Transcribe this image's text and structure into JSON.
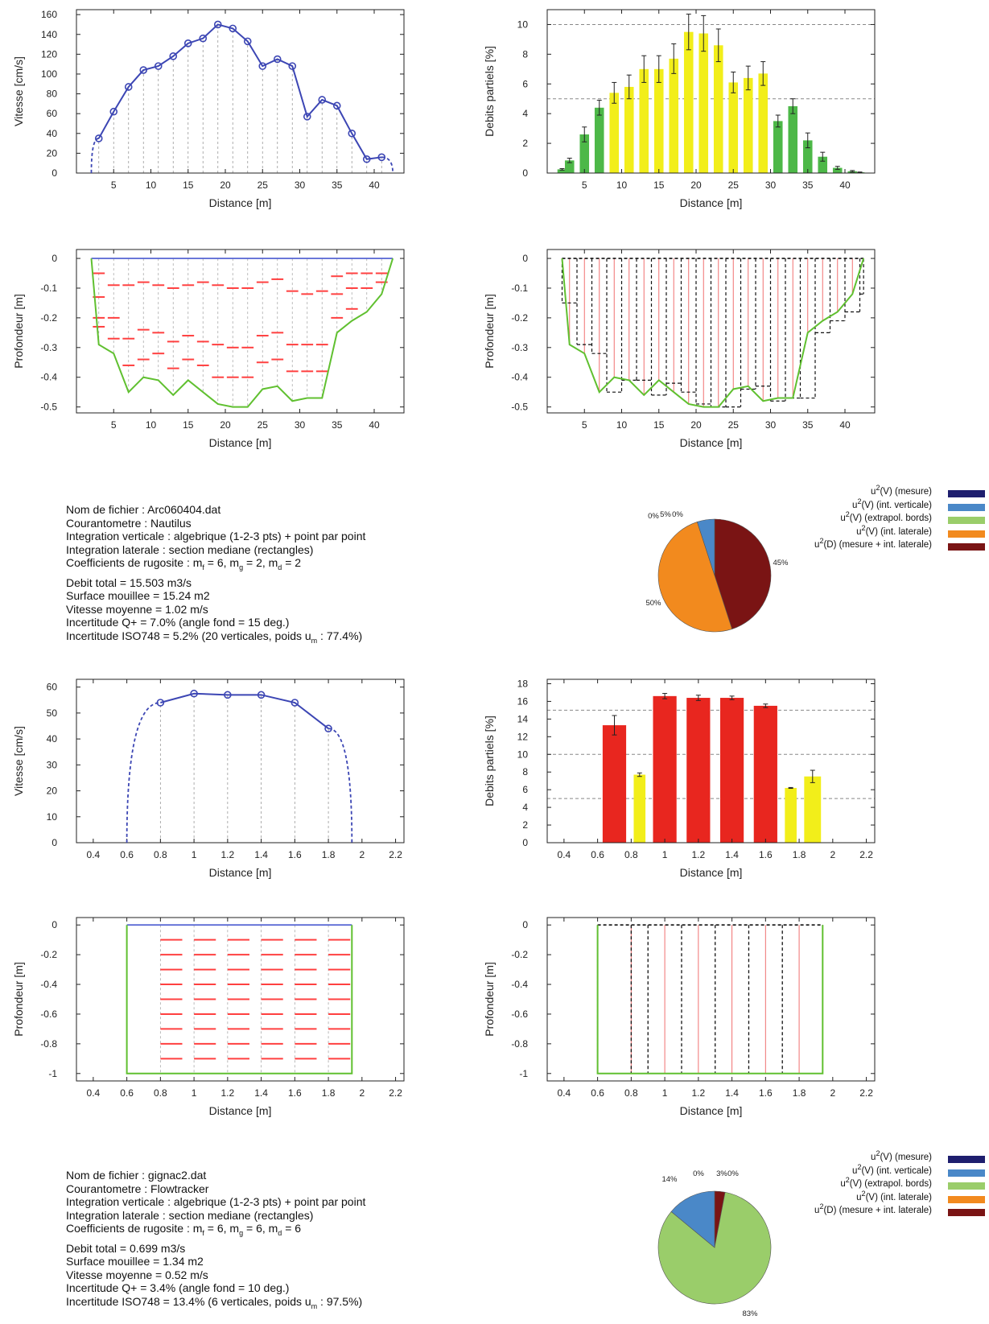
{
  "colors": {
    "velocity_line": "#3c46b4",
    "point_red": "#ff4040",
    "bed_green": "#60c030",
    "surface_blue": "#4a5ad0",
    "bar_green": "#4db848",
    "bar_yellow": "#f2ee1a",
    "bar_red": "#e8261f",
    "pie_dark_blue": "#1e1e6e",
    "pie_blue": "#4a88c8",
    "pie_light_green": "#9acd6a",
    "pie_orange": "#f28a1e",
    "pie_dark_red": "#7a1414"
  },
  "chart_data": [
    {
      "id": "m1_velocity",
      "type": "line",
      "xlabel": "Distance [m]",
      "ylabel": "Vitesse [cm/s]",
      "xlim": [
        0,
        44
      ],
      "ylim": [
        0,
        165
      ],
      "xticks": [
        5,
        10,
        15,
        20,
        25,
        30,
        35,
        40
      ],
      "yticks": [
        0,
        20,
        40,
        60,
        80,
        100,
        120,
        140,
        160
      ],
      "x": [
        3,
        5,
        7,
        9,
        11,
        13,
        15,
        17,
        19,
        21,
        23,
        25,
        27,
        29,
        31,
        33,
        35,
        37,
        39,
        41
      ],
      "y": [
        35,
        62,
        87,
        104,
        108,
        118,
        131,
        136,
        150,
        146,
        133,
        108,
        115,
        108,
        57,
        74,
        68,
        40,
        14,
        16
      ],
      "extrapolated_left": [
        2,
        0
      ],
      "extrapolated_right": [
        42.5,
        0
      ],
      "grid": "vertical dashed"
    },
    {
      "id": "m1_partial_flows",
      "type": "bar",
      "xlabel": "Distance [m]",
      "ylabel": "Debits partiels [%]",
      "xlim": [
        0,
        44
      ],
      "ylim": [
        0,
        11
      ],
      "xticks": [
        5,
        10,
        15,
        20,
        25,
        30,
        35,
        40
      ],
      "yticks": [
        0,
        2,
        4,
        6,
        8,
        10
      ],
      "reference_lines": [
        5,
        10
      ],
      "x": [
        2,
        3,
        5,
        7,
        9,
        11,
        13,
        15,
        17,
        19,
        21,
        23,
        25,
        27,
        29,
        31,
        33,
        35,
        37,
        39,
        41,
        42
      ],
      "values": [
        0.25,
        0.85,
        2.6,
        4.4,
        5.4,
        5.8,
        7.0,
        7.0,
        7.7,
        9.5,
        9.4,
        8.6,
        6.1,
        6.4,
        6.7,
        3.5,
        4.5,
        2.2,
        1.1,
        0.35,
        0.12,
        0.05
      ],
      "errors": [
        0.05,
        0.15,
        0.5,
        0.5,
        0.7,
        0.8,
        0.9,
        0.9,
        1.0,
        1.2,
        1.2,
        1.1,
        0.7,
        0.8,
        0.8,
        0.4,
        0.5,
        0.5,
        0.3,
        0.1,
        0.05,
        0.02
      ],
      "colors": [
        "green",
        "green",
        "green",
        "green",
        "yellow",
        "yellow",
        "yellow",
        "yellow",
        "yellow",
        "yellow",
        "yellow",
        "yellow",
        "yellow",
        "yellow",
        "yellow",
        "green",
        "green",
        "green",
        "green",
        "green",
        "green",
        "green"
      ]
    },
    {
      "id": "m1_section_points",
      "type": "line",
      "xlabel": "Distance [m]",
      "ylabel": "Profondeur [m]",
      "xlim": [
        0,
        44
      ],
      "ylim": [
        -0.52,
        0.03
      ],
      "xticks": [
        5,
        10,
        15,
        20,
        25,
        30,
        35,
        40
      ],
      "yticks": [
        0,
        -0.1,
        -0.2,
        -0.3,
        -0.4,
        -0.5
      ],
      "ytick_labels": [
        "0",
        "-0.1",
        "-0.2",
        "-0.3",
        "-0.4",
        "-0.5"
      ],
      "bed_x": [
        2,
        3,
        5,
        7,
        9,
        11,
        13,
        15,
        17,
        19,
        21,
        23,
        25,
        27,
        29,
        31,
        33,
        35,
        37,
        39,
        41,
        42.5
      ],
      "bed_y": [
        0,
        -0.29,
        -0.32,
        -0.45,
        -0.4,
        -0.41,
        -0.46,
        -0.41,
        -0.45,
        -0.49,
        -0.5,
        -0.5,
        -0.44,
        -0.43,
        -0.48,
        -0.47,
        -0.47,
        -0.25,
        -0.21,
        -0.18,
        -0.12,
        0
      ],
      "verticals_x": [
        3,
        5,
        7,
        9,
        11,
        13,
        15,
        17,
        19,
        21,
        23,
        25,
        27,
        29,
        31,
        33,
        35,
        37,
        39,
        41
      ],
      "measure_points": [
        [
          3,
          -0.05
        ],
        [
          3,
          -0.13
        ],
        [
          3,
          -0.2
        ],
        [
          3,
          -0.23
        ],
        [
          5,
          -0.09
        ],
        [
          5,
          -0.2
        ],
        [
          5,
          -0.27
        ],
        [
          7,
          -0.09
        ],
        [
          7,
          -0.27
        ],
        [
          7,
          -0.36
        ],
        [
          9,
          -0.08
        ],
        [
          9,
          -0.24
        ],
        [
          9,
          -0.34
        ],
        [
          11,
          -0.09
        ],
        [
          11,
          -0.25
        ],
        [
          11,
          -0.32
        ],
        [
          13,
          -0.1
        ],
        [
          13,
          -0.28
        ],
        [
          13,
          -0.37
        ],
        [
          15,
          -0.09
        ],
        [
          15,
          -0.26
        ],
        [
          15,
          -0.34
        ],
        [
          17,
          -0.08
        ],
        [
          17,
          -0.28
        ],
        [
          17,
          -0.36
        ],
        [
          19,
          -0.09
        ],
        [
          19,
          -0.29
        ],
        [
          19,
          -0.4
        ],
        [
          21,
          -0.1
        ],
        [
          21,
          -0.3
        ],
        [
          21,
          -0.4
        ],
        [
          23,
          -0.1
        ],
        [
          23,
          -0.3
        ],
        [
          23,
          -0.4
        ],
        [
          25,
          -0.08
        ],
        [
          25,
          -0.26
        ],
        [
          25,
          -0.35
        ],
        [
          27,
          -0.07
        ],
        [
          27,
          -0.25
        ],
        [
          27,
          -0.34
        ],
        [
          29,
          -0.11
        ],
        [
          29,
          -0.29
        ],
        [
          29,
          -0.38
        ],
        [
          31,
          -0.12
        ],
        [
          31,
          -0.29
        ],
        [
          31,
          -0.38
        ],
        [
          33,
          -0.11
        ],
        [
          33,
          -0.29
        ],
        [
          33,
          -0.38
        ],
        [
          35,
          -0.06
        ],
        [
          35,
          -0.12
        ],
        [
          35,
          -0.2
        ],
        [
          37,
          -0.05
        ],
        [
          37,
          -0.1
        ],
        [
          37,
          -0.17
        ],
        [
          39,
          -0.05
        ],
        [
          39,
          -0.1
        ],
        [
          41,
          -0.05
        ],
        [
          41,
          -0.08
        ]
      ]
    },
    {
      "id": "m1_section_integration",
      "type": "line",
      "xlabel": "Distance [m]",
      "ylabel": "Profondeur [m]",
      "xlim": [
        0,
        44
      ],
      "ylim": [
        -0.52,
        0.03
      ],
      "xticks": [
        5,
        10,
        15,
        20,
        25,
        30,
        35,
        40
      ],
      "yticks": [
        0,
        -0.1,
        -0.2,
        -0.3,
        -0.4,
        -0.5
      ],
      "ytick_labels": [
        "0",
        "-0.1",
        "-0.2",
        "-0.3",
        "-0.4",
        "-0.5"
      ],
      "bed_x": [
        2,
        3,
        5,
        7,
        9,
        11,
        13,
        15,
        17,
        19,
        21,
        23,
        25,
        27,
        29,
        31,
        33,
        35,
        37,
        39,
        41,
        42.5
      ],
      "bed_y": [
        0,
        -0.29,
        -0.32,
        -0.45,
        -0.4,
        -0.41,
        -0.46,
        -0.41,
        -0.45,
        -0.49,
        -0.5,
        -0.5,
        -0.44,
        -0.43,
        -0.48,
        -0.47,
        -0.47,
        -0.25,
        -0.21,
        -0.18,
        -0.12,
        0
      ],
      "verticals_x": [
        3,
        5,
        7,
        9,
        11,
        13,
        15,
        17,
        19,
        21,
        23,
        25,
        27,
        29,
        31,
        33,
        35,
        37,
        39,
        41
      ],
      "verticals_depth": [
        -0.29,
        -0.32,
        -0.45,
        -0.4,
        -0.41,
        -0.46,
        -0.41,
        -0.45,
        -0.49,
        -0.5,
        -0.5,
        -0.44,
        -0.43,
        -0.48,
        -0.47,
        -0.47,
        -0.25,
        -0.21,
        -0.18,
        -0.12
      ],
      "edges_x": [
        2,
        4,
        6,
        8,
        10,
        12,
        14,
        16,
        18,
        20,
        22,
        24,
        26,
        28,
        30,
        32,
        34,
        36,
        38,
        40,
        42,
        42.5
      ],
      "edge_depths": [
        -0.15,
        -0.29,
        -0.32,
        -0.45,
        -0.41,
        -0.41,
        -0.46,
        -0.42,
        -0.45,
        -0.49,
        -0.5,
        -0.5,
        -0.44,
        -0.43,
        -0.48,
        -0.47,
        -0.47,
        -0.25,
        -0.21,
        -0.18,
        -0.12,
        -0.06
      ]
    },
    {
      "id": "m1_uncertainty_pie",
      "type": "pie",
      "labels": [
        "u2(V) (mesure)",
        "u2(V) (int. verticale)",
        "u2(V) (extrapol. bords)",
        "u2(V) (int. laterale)",
        "u2(D) (mesure + int. laterale)"
      ],
      "values": [
        0,
        5,
        0,
        50,
        45
      ],
      "slice_labels": [
        "0%",
        "5%",
        "0%",
        "50%",
        "45%"
      ],
      "colors": [
        "#1e1e6e",
        "#4a88c8",
        "#9acd6a",
        "#f28a1e",
        "#7a1414"
      ]
    },
    {
      "id": "m2_velocity",
      "type": "line",
      "xlabel": "Distance [m]",
      "ylabel": "Vitesse [cm/s]",
      "xlim": [
        0.3,
        2.25
      ],
      "ylim": [
        0,
        63
      ],
      "xticks": [
        0.4,
        0.6,
        0.8,
        1,
        1.2,
        1.4,
        1.6,
        1.8,
        2,
        2.2
      ],
      "yticks": [
        0,
        10,
        20,
        30,
        40,
        50,
        60
      ],
      "x": [
        0.8,
        1.0,
        1.2,
        1.4,
        1.6,
        1.8
      ],
      "y": [
        54,
        57.5,
        57,
        57,
        54,
        44
      ],
      "extrapolated_left": [
        0.6,
        0
      ],
      "extrapolated_right": [
        1.94,
        0
      ]
    },
    {
      "id": "m2_partial_flows",
      "type": "bar",
      "xlabel": "Distance [m]",
      "ylabel": "Debits partiels [%]",
      "xlim": [
        0.3,
        2.25
      ],
      "ylim": [
        0,
        18.5
      ],
      "xticks": [
        0.4,
        0.6,
        0.8,
        1,
        1.2,
        1.4,
        1.6,
        1.8,
        2,
        2.2
      ],
      "yticks": [
        0,
        2,
        4,
        6,
        8,
        10,
        12,
        14,
        16,
        18
      ],
      "reference_lines": [
        5,
        10,
        15
      ],
      "x": [
        0.7,
        0.85,
        1.0,
        1.2,
        1.4,
        1.6,
        1.75,
        1.88
      ],
      "widths": [
        0.14,
        0.07,
        0.14,
        0.14,
        0.14,
        0.14,
        0.07,
        0.1
      ],
      "values": [
        13.3,
        7.7,
        16.6,
        16.4,
        16.4,
        15.5,
        6.2,
        7.5
      ],
      "errors": [
        1.1,
        0.2,
        0.3,
        0.3,
        0.2,
        0.2,
        0.05,
        0.7
      ],
      "colors": [
        "red",
        "yellow",
        "red",
        "red",
        "red",
        "red",
        "yellow",
        "yellow"
      ]
    },
    {
      "id": "m2_section_points",
      "type": "line",
      "xlabel": "Distance [m]",
      "ylabel": "Profondeur [m]",
      "xlim": [
        0.3,
        2.25
      ],
      "ylim": [
        -1.05,
        0.05
      ],
      "xticks": [
        0.4,
        0.6,
        0.8,
        1,
        1.2,
        1.4,
        1.6,
        1.8,
        2,
        2.2
      ],
      "yticks": [
        0,
        -0.2,
        -0.4,
        -0.6,
        -0.8,
        -1
      ],
      "ytick_labels": [
        "0",
        "-0.2",
        "-0.4",
        "-0.6",
        "-0.8",
        "-1"
      ],
      "bed_x": [
        0.6,
        0.6,
        1.94,
        1.94
      ],
      "bed_y": [
        0,
        -1,
        -1,
        0
      ],
      "verticals_x": [
        0.8,
        1.0,
        1.2,
        1.4,
        1.6,
        1.8
      ],
      "point_depths": [
        -0.1,
        -0.2,
        -0.3,
        -0.4,
        -0.5,
        -0.6,
        -0.7,
        -0.8,
        -0.9
      ]
    },
    {
      "id": "m2_section_integration",
      "type": "line",
      "xlabel": "Distance [m]",
      "ylabel": "Profondeur [m]",
      "xlim": [
        0.3,
        2.25
      ],
      "ylim": [
        -1.05,
        0.05
      ],
      "xticks": [
        0.4,
        0.6,
        0.8,
        1,
        1.2,
        1.4,
        1.6,
        1.8,
        2,
        2.2
      ],
      "yticks": [
        0,
        -0.2,
        -0.4,
        -0.6,
        -0.8,
        -1
      ],
      "ytick_labels": [
        "0",
        "-0.2",
        "-0.4",
        "-0.6",
        "-0.8",
        "-1"
      ],
      "bed_x": [
        0.6,
        0.6,
        1.94,
        1.94
      ],
      "bed_y": [
        0,
        -1,
        -1,
        0
      ],
      "verticals_x": [
        0.8,
        1.0,
        1.2,
        1.4,
        1.6,
        1.8
      ],
      "edges_x": [
        0.6,
        0.8,
        0.9,
        1.1,
        1.3,
        1.5,
        1.7,
        1.94
      ]
    },
    {
      "id": "m2_uncertainty_pie",
      "type": "pie",
      "labels": [
        "u2(V) (mesure)",
        "u2(V) (int. verticale)",
        "u2(V) (extrapol. bords)",
        "u2(V) (int. laterale)",
        "u2(D) (mesure + int. laterale)"
      ],
      "values": [
        0,
        14,
        83,
        0,
        3
      ],
      "slice_labels": [
        "0%",
        "14%",
        "83%",
        "0%",
        "3%"
      ],
      "colors": [
        "#1e1e6e",
        "#4a88c8",
        "#9acd6a",
        "#f28a1e",
        "#7a1414"
      ]
    }
  ],
  "measurement_1": {
    "file": "Nom de fichier : Arc060404.dat",
    "meter": "Courantometre : Nautilus",
    "vertical_integration": "Integration verticale : algebrique (1-2-3 pts) + point par point",
    "lateral_integration": "Integration laterale : section mediane (rectangles)",
    "roughness_prefix": "Coefficients de rugosite : m",
    "roughness_f": "f",
    "roughness_f_value": " = 6, m",
    "roughness_g": "g",
    "roughness_g_value": " = 2, m",
    "roughness_d": "d",
    "roughness_d_value": " = 2",
    "total_flow": "Debit total = 15.503 m3/s",
    "wetted_area": "Surface mouillee = 15.24 m2",
    "mean_velocity": "Vitesse moyenne = 1.02 m/s",
    "uncertainty_q": "Incertitude Q+ = 7.0% (angle fond = 15 deg.)",
    "uncertainty_iso_prefix": "Incertitude ISO748 = 5.2% (20 verticales, poids u",
    "uncertainty_iso_sub": "m",
    "uncertainty_iso_suffix": " :  77.4%)"
  },
  "measurement_2": {
    "file": "Nom de fichier : gignac2.dat",
    "meter": "Courantometre : Flowtracker",
    "vertical_integration": "Integration verticale : algebrique (1-2-3 pts) + point par point",
    "lateral_integration": "Integration laterale : section mediane (rectangles)",
    "roughness_prefix": "Coefficients de rugosite : m",
    "roughness_f": "f",
    "roughness_f_value": " = 6, m",
    "roughness_g": "g",
    "roughness_g_value": " = 6, m",
    "roughness_d": "d",
    "roughness_d_value": " = 6",
    "total_flow": "Debit total = 0.699 m3/s",
    "wetted_area": "Surface mouillee = 1.34 m2",
    "mean_velocity": "Vitesse moyenne = 0.52 m/s",
    "uncertainty_q": "Incertitude Q+ = 3.4% (angle fond = 10 deg.)",
    "uncertainty_iso_prefix": "Incertitude ISO748 = 13.4% (6 verticales, poids u",
    "uncertainty_iso_sub": "m",
    "uncertainty_iso_suffix": " :  97.5%)"
  },
  "legend": {
    "items": [
      {
        "u": "u",
        "sup": "2",
        "text": "(V) (mesure)"
      },
      {
        "u": "u",
        "sup": "2",
        "text": "(V) (int. verticale)"
      },
      {
        "u": "u",
        "sup": "2",
        "text": "(V) (extrapol. bords)"
      },
      {
        "u": "u",
        "sup": "2",
        "text": "(V) (int. laterale)"
      },
      {
        "u": "u",
        "sup": "2",
        "text": "(D) (mesure + int. laterale)"
      }
    ]
  }
}
